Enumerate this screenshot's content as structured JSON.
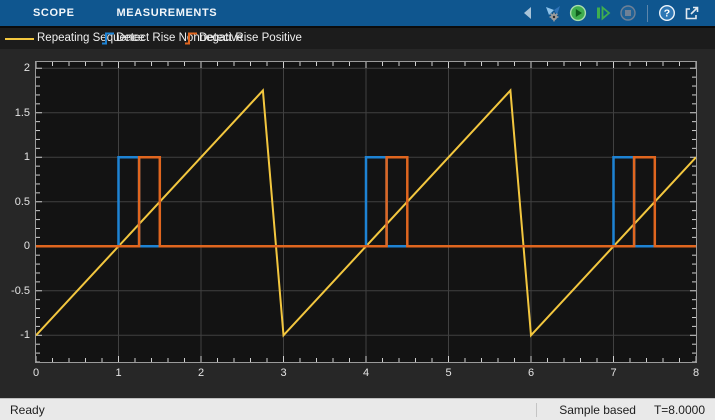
{
  "toolbar": {
    "tabs": [
      {
        "label": "SCOPE"
      },
      {
        "label": "MEASUREMENTS"
      }
    ],
    "icons": [
      "collapse-toolstrip-chevron",
      "simulation-settings",
      "run",
      "step-forward",
      "stop",
      "help",
      "pop-out-window"
    ]
  },
  "legend": {
    "items": [
      {
        "label": "Repeating Sequence",
        "color": "#F3C73F",
        "swatch": "line"
      },
      {
        "label": "Detect Rise Nonnegative",
        "color": "#1E83D4",
        "swatch": "step"
      },
      {
        "label": "Detect Rise Positive",
        "color": "#E0661F",
        "swatch": "step"
      }
    ]
  },
  "chart_data": {
    "type": "line",
    "title": "",
    "xlabel": "",
    "ylabel": "",
    "xlim": [
      0,
      8
    ],
    "ylim": [
      -1.3,
      2.07
    ],
    "xticks": [
      0,
      1,
      2,
      3,
      4,
      5,
      6,
      7,
      8
    ],
    "yticks": [
      -1,
      -0.5,
      0,
      0.5,
      1,
      1.5,
      2
    ],
    "minor_tick_step_x": 0.2,
    "minor_tick_step_y": 0.1,
    "grid": true,
    "legend_position": "top-strip",
    "series": [
      {
        "name": "Repeating Sequence",
        "color": "#F3C73F",
        "width": 2,
        "points": [
          [
            0,
            -1
          ],
          [
            2.75,
            1.75
          ],
          [
            3,
            -1
          ],
          [
            5.75,
            1.75
          ],
          [
            6,
            -1
          ],
          [
            8,
            1
          ]
        ]
      },
      {
        "name": "Detect Rise Nonnegative",
        "color": "#1E83D4",
        "width": 2.5,
        "points": [
          [
            0,
            0
          ],
          [
            1,
            0
          ],
          [
            1,
            1
          ],
          [
            1.25,
            1
          ],
          [
            1.25,
            0
          ],
          [
            4,
            0
          ],
          [
            4,
            1
          ],
          [
            4.25,
            1
          ],
          [
            4.25,
            0
          ],
          [
            7,
            0
          ],
          [
            7,
            1
          ],
          [
            7.25,
            1
          ],
          [
            7.25,
            0
          ],
          [
            8,
            0
          ]
        ]
      },
      {
        "name": "Detect Rise Positive",
        "color": "#E0661F",
        "width": 2.5,
        "points": [
          [
            0,
            0
          ],
          [
            1.25,
            0
          ],
          [
            1.25,
            1
          ],
          [
            1.5,
            1
          ],
          [
            1.5,
            0
          ],
          [
            4.25,
            0
          ],
          [
            4.25,
            1
          ],
          [
            4.5,
            1
          ],
          [
            4.5,
            0
          ],
          [
            7.25,
            0
          ],
          [
            7.25,
            1
          ],
          [
            7.5,
            1
          ],
          [
            7.5,
            0
          ],
          [
            8,
            0
          ]
        ]
      }
    ]
  },
  "status_bar": {
    "left": "Ready",
    "sample_mode": "Sample based",
    "time": "T=8.0000"
  },
  "colors": {
    "toolbar_blue": "#0F568F",
    "legend_bg": "#1c1c1c",
    "chrome_bg": "#272727",
    "plot_bg": "#131313",
    "grid": "#414141",
    "axis_border": "#9b9b9b",
    "tick": "#cfcfcf",
    "status_bg": "#e9e9e9",
    "series_yellow": "#F3C73F",
    "series_blue": "#1E83D4",
    "series_orange": "#E0661F"
  }
}
